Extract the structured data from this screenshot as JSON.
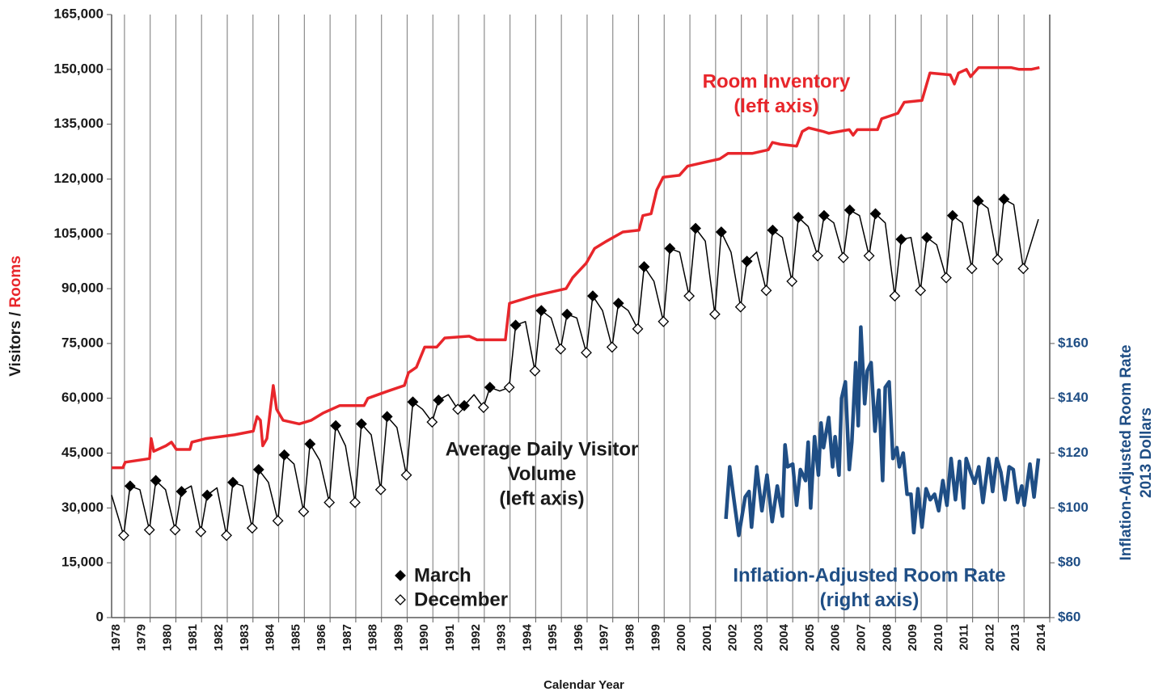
{
  "chart_data": {
    "type": "line",
    "x_title": "Calendar Year",
    "y_title": "Visitors /",
    "y_title_highlight": "Rooms",
    "y_title_highlight_color": "#e8262b",
    "y2_title": [
      "Inflation-Adjusted Room Rate",
      "2013 Dollars"
    ],
    "y2_color": "#1f4e85",
    "xlim": [
      1977.5,
      2014
    ],
    "xticks": [
      1978,
      1979,
      1980,
      1981,
      1982,
      1983,
      1984,
      1985,
      1986,
      1987,
      1988,
      1989,
      1990,
      1991,
      1992,
      1993,
      1994,
      1995,
      1996,
      1997,
      1998,
      1999,
      2000,
      2001,
      2002,
      2003,
      2004,
      2005,
      2006,
      2007,
      2008,
      2009,
      2010,
      2011,
      2012,
      2013,
      2014
    ],
    "ylim": [
      0,
      165000
    ],
    "yticks": [
      0,
      {
        "value": 15000,
        "label": "15,000"
      },
      {
        "value": 30000,
        "label": "30,000"
      },
      {
        "value": 45000,
        "label": "45,000"
      },
      {
        "value": 60000,
        "label": "60,000"
      },
      {
        "value": 75000,
        "label": "75,000"
      },
      {
        "value": 90000,
        "label": "90,000"
      },
      {
        "value": 105000,
        "label": "105,000"
      },
      {
        "value": 120000,
        "label": "120,000"
      },
      {
        "value": 135000,
        "label": "135,000"
      },
      {
        "value": 150000,
        "label": "150,000"
      },
      {
        "value": 165000,
        "label": "165,000"
      }
    ],
    "y2lim": [
      60,
      280
    ],
    "y2ticks": [
      {
        "value": 60,
        "label": "$60"
      },
      {
        "value": 80,
        "label": "$80"
      },
      {
        "value": 100,
        "label": "$100"
      },
      {
        "value": 120,
        "label": "$120"
      },
      {
        "value": 140,
        "label": "$140"
      },
      {
        "value": 160,
        "label": "$160"
      }
    ],
    "x_grid": true,
    "legend": "lower-center",
    "series": [
      {
        "color": "#e8262b",
        "x": [
          1977.5,
          1977.94,
          1978.03,
          1978.98,
          1979.04,
          1979.14,
          1979.61,
          1979.83,
          1980.02,
          1980.55,
          1980.62,
          1981.18,
          1982.28,
          1983.01,
          1983.16,
          1983.29,
          1983.38,
          1983.54,
          1983.79,
          1983.92,
          1984.17,
          1984.8,
          1985.27,
          1985.74,
          1986.37,
          1987.32,
          1987.47,
          1988.26,
          1988.89,
          1989.05,
          1989.36,
          1989.68,
          1990.15,
          1990.46,
          1991.41,
          1991.72,
          1992.82,
          1992.98,
          1993.93,
          1995.18,
          1995.44,
          1995.97,
          1996.29,
          1996.76,
          1997.39,
          1998.02,
          1998.17,
          1998.49,
          1998.71,
          1998.96,
          1999.59,
          1999.91,
          2000.53,
          2001.16,
          2001.48,
          2002.42,
          2003.05,
          2003.21,
          2003.52,
          2004.15,
          2004.37,
          2004.62,
          2005.19,
          2005.41,
          2006.2,
          2006.35,
          2006.51,
          2007.3,
          2007.46,
          2008.09,
          2008.34,
          2009.03,
          2009.34,
          2010.13,
          2010.29,
          2010.45,
          2010.76,
          2010.92,
          2011.23,
          2012.49,
          2012.81,
          2013.28,
          2013.6
        ],
        "values": [
          41000,
          41000,
          42500,
          43500,
          49000,
          45500,
          47000,
          48000,
          46000,
          46000,
          48000,
          49000,
          50000,
          51000,
          55000,
          54000,
          47000,
          49000,
          63500,
          57000,
          54000,
          53000,
          54000,
          56000,
          58000,
          58000,
          60000,
          62000,
          63500,
          67000,
          68500,
          74000,
          74000,
          76500,
          77000,
          76000,
          76000,
          86000,
          88000,
          90000,
          93000,
          97000,
          101000,
          103000,
          105500,
          106000,
          110000,
          110500,
          117000,
          120500,
          121000,
          123500,
          124500,
          125500,
          127000,
          127000,
          128000,
          130000,
          129500,
          129000,
          133000,
          134000,
          133000,
          132500,
          133500,
          132000,
          133500,
          133500,
          136500,
          138000,
          141000,
          141500,
          149000,
          148500,
          146000,
          149000,
          150000,
          148000,
          150500,
          150500,
          150000,
          150000,
          150500
        ]
      },
      {
        "color": "#000000",
        "x": [
          1977.5,
          1977.97,
          1978.22,
          1978.6,
          1978.97,
          1979.22,
          1979.6,
          1979.97,
          1980.22,
          1980.6,
          1980.97,
          1981.22,
          1981.6,
          1981.97,
          1982.22,
          1982.6,
          1982.97,
          1983.22,
          1983.6,
          1983.97,
          1984.22,
          1984.6,
          1984.97,
          1985.22,
          1985.6,
          1985.97,
          1986.22,
          1986.6,
          1986.97,
          1987.22,
          1987.6,
          1987.97,
          1988.22,
          1988.6,
          1988.97,
          1989.22,
          1989.6,
          1989.97,
          1990.22,
          1990.6,
          1990.97,
          1991.22,
          1991.6,
          1991.97,
          1992.22,
          1992.6,
          1992.97,
          1993.22,
          1993.6,
          1993.97,
          1994.22,
          1994.6,
          1994.97,
          1995.22,
          1995.6,
          1995.97,
          1996.22,
          1996.6,
          1996.97,
          1997.22,
          1997.6,
          1997.97,
          1998.22,
          1998.6,
          1998.97,
          1999.22,
          1999.6,
          1999.97,
          2000.22,
          2000.6,
          2000.97,
          2001.22,
          2001.6,
          2001.97,
          2002.22,
          2002.6,
          2002.97,
          2003.22,
          2003.6,
          2003.97,
          2004.22,
          2004.6,
          2004.97,
          2005.22,
          2005.6,
          2005.97,
          2006.22,
          2006.6,
          2006.97,
          2007.22,
          2007.6,
          2007.97,
          2008.22,
          2008.6,
          2008.97,
          2009.22,
          2009.6,
          2009.97,
          2010.22,
          2010.6,
          2010.97,
          2011.22,
          2011.6,
          2011.97,
          2012.22,
          2012.6,
          2012.97,
          2013.56
        ],
        "values": [
          33500,
          22500,
          36000,
          35000,
          24000,
          37500,
          35000,
          24000,
          34500,
          36000,
          23500,
          33500,
          35500,
          22500,
          37000,
          36000,
          24500,
          40500,
          37000,
          26500,
          44500,
          42000,
          29000,
          47500,
          43000,
          31500,
          52500,
          47000,
          31500,
          53000,
          50000,
          35000,
          55000,
          52000,
          39000,
          59000,
          57000,
          53500,
          59500,
          61000,
          57000,
          58000,
          61000,
          57500,
          63000,
          62000,
          63000,
          80000,
          81000,
          67500,
          84000,
          82000,
          73500,
          83000,
          82000,
          72500,
          88000,
          84000,
          74000,
          86000,
          84000,
          79000,
          96000,
          92000,
          81000,
          101000,
          100000,
          88000,
          106500,
          103000,
          83000,
          105500,
          100000,
          85000,
          97500,
          100000,
          89500,
          106000,
          104000,
          92000,
          109500,
          107000,
          99000,
          110000,
          108000,
          98500,
          111500,
          110000,
          99000,
          110500,
          108000,
          88000,
          103500,
          104000,
          89500,
          104000,
          102000,
          93000,
          110000,
          108000,
          95500,
          114000,
          112000,
          98000,
          114500,
          113000,
          95500,
          109000
        ]
      },
      {
        "name": "March",
        "marker": "filled-diamond",
        "color": "#000000",
        "x": [
          1978.22,
          1979.22,
          1980.22,
          1981.22,
          1982.22,
          1983.22,
          1984.22,
          1985.22,
          1986.22,
          1987.22,
          1988.22,
          1989.22,
          1990.22,
          1991.22,
          1992.22,
          1993.22,
          1994.22,
          1995.22,
          1996.22,
          1997.22,
          1998.22,
          1999.22,
          2000.22,
          2001.22,
          2002.22,
          2003.22,
          2004.22,
          2005.22,
          2006.22,
          2007.22,
          2008.22,
          2009.22,
          2010.22,
          2011.22,
          2012.22
        ],
        "values": [
          36000,
          37500,
          34500,
          33500,
          37000,
          40500,
          44500,
          47500,
          52500,
          53000,
          55000,
          59000,
          59500,
          58000,
          63000,
          80000,
          84000,
          83000,
          88000,
          86000,
          96000,
          101000,
          106500,
          105500,
          97500,
          106000,
          109500,
          110000,
          111500,
          110500,
          103500,
          104000,
          110000,
          114000,
          114500
        ]
      },
      {
        "name": "December",
        "marker": "open-diamond",
        "color": "#000000",
        "x": [
          1977.97,
          1978.97,
          1979.97,
          1980.97,
          1981.97,
          1982.97,
          1983.97,
          1984.97,
          1985.97,
          1986.97,
          1987.97,
          1988.97,
          1989.97,
          1990.97,
          1991.97,
          1992.97,
          1993.97,
          1994.97,
          1995.97,
          1996.97,
          1997.97,
          1998.97,
          1999.97,
          2000.97,
          2001.97,
          2002.97,
          2003.97,
          2004.97,
          2005.97,
          2006.97,
          2007.97,
          2008.97,
          2009.97,
          2010.97,
          2011.97,
          2012.97
        ],
        "values": [
          22500,
          24000,
          24000,
          23500,
          22500,
          24500,
          26500,
          29000,
          31500,
          31500,
          35000,
          39000,
          53500,
          57000,
          57500,
          63000,
          67500,
          73500,
          72500,
          74000,
          79000,
          81000,
          88000,
          83000,
          85000,
          89500,
          92000,
          99000,
          98500,
          99000,
          88000,
          89500,
          93000,
          95500,
          98000,
          95500
        ]
      },
      {
        "color": "#1f4e85",
        "axis": "y2",
        "x": [
          2001.4,
          2001.55,
          2001.7,
          2001.9,
          2002.15,
          2002.3,
          2002.4,
          2002.6,
          2002.8,
          2003.0,
          2003.2,
          2003.4,
          2003.6,
          2003.7,
          2003.8,
          2004.0,
          2004.15,
          2004.3,
          2004.5,
          2004.6,
          2004.7,
          2004.85,
          2005.0,
          2005.1,
          2005.2,
          2005.4,
          2005.55,
          2005.65,
          2005.8,
          2005.9,
          2006.05,
          2006.2,
          2006.3,
          2006.45,
          2006.55,
          2006.65,
          2006.8,
          2006.9,
          2007.05,
          2007.2,
          2007.35,
          2007.5,
          2007.6,
          2007.75,
          2007.9,
          2008.05,
          2008.15,
          2008.3,
          2008.45,
          2008.6,
          2008.71,
          2008.87,
          2009.03,
          2009.19,
          2009.35,
          2009.52,
          2009.68,
          2009.84,
          2010.0,
          2010.16,
          2010.33,
          2010.49,
          2010.65,
          2010.75,
          2010.92,
          2011.08,
          2011.24,
          2011.4,
          2011.62,
          2011.78,
          2011.94,
          2012.1,
          2012.26,
          2012.42,
          2012.58,
          2012.75,
          2012.91,
          2013.01,
          2013.23,
          2013.39,
          2013.56
        ],
        "values": [
          96,
          115,
          104,
          90,
          104,
          106,
          93,
          115,
          99,
          112,
          95,
          108,
          97,
          123,
          115,
          116,
          101,
          114,
          110,
          124,
          100,
          126,
          112,
          131,
          122,
          133,
          115,
          126,
          112,
          140,
          146,
          114,
          124,
          153,
          130,
          166,
          138,
          150,
          153,
          128,
          143,
          110,
          144,
          146,
          118,
          122,
          115,
          120,
          105,
          105,
          91,
          107,
          93,
          107,
          103,
          105,
          99,
          110,
          101,
          118,
          103,
          117,
          100,
          118,
          113,
          109,
          115,
          102,
          118,
          106,
          118,
          113,
          103,
          115,
          114,
          102,
          108,
          101,
          116,
          104,
          118
        ]
      }
    ],
    "annotations": [
      {
        "lines": [
          "Room Inventory",
          "(left axis)"
        ],
        "color": "#e8262b"
      },
      {
        "lines": [
          "Average Daily Visitor",
          "Volume",
          "(left axis)"
        ],
        "color": "#1a1a1a"
      },
      {
        "lines": [
          "Inflation-Adjusted Room Rate",
          "(right axis)"
        ],
        "color": "#1f4e85"
      }
    ]
  }
}
